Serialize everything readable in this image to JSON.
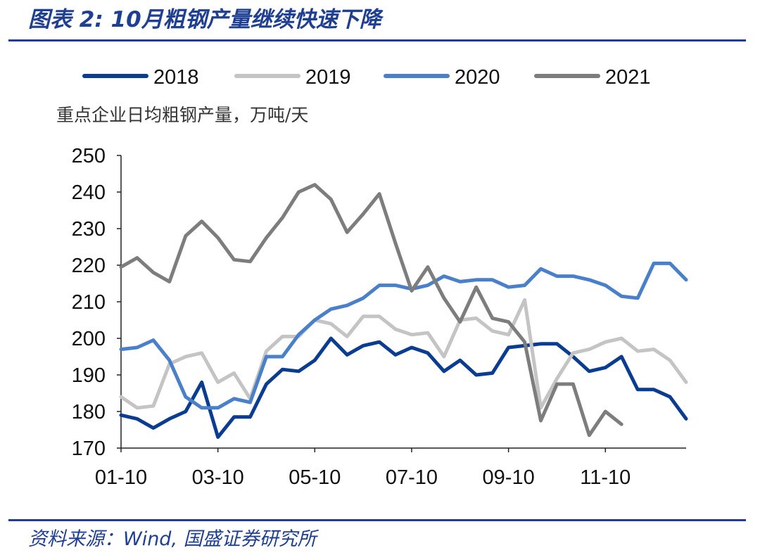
{
  "figure": {
    "title": "图表 2: 10月粗钢产量继续快速下降",
    "source": "资料来源：Wind, 国盛证券研究所"
  },
  "chart_data": {
    "type": "line",
    "ylabel": "重点企业日均粗钢产量，万吨/天",
    "ylim": [
      170,
      250
    ],
    "yticks": [
      170,
      180,
      190,
      200,
      210,
      220,
      230,
      240,
      250
    ],
    "xticks": [
      "01-10",
      "03-10",
      "05-10",
      "07-10",
      "09-10",
      "11-10"
    ],
    "xtick_index": [
      0,
      6,
      12,
      18,
      24,
      30
    ],
    "n_periods": 36,
    "legend_position": "top",
    "grid": false,
    "series": [
      {
        "name": "2018",
        "color": "#0a3d91",
        "values": [
          179,
          178,
          175.5,
          178,
          180,
          188,
          173,
          178.5,
          178.5,
          187.5,
          191.5,
          191,
          194,
          200,
          195.5,
          198,
          199,
          195.5,
          197.5,
          196,
          191,
          194,
          190,
          190.5,
          197.5,
          198,
          198.5,
          198.5,
          195,
          191,
          192,
          195,
          186,
          186,
          184,
          178
        ]
      },
      {
        "name": "2019",
        "color": "#c4c4c4",
        "values": [
          184,
          181,
          181.5,
          193,
          195,
          196,
          188,
          190.5,
          183.5,
          196.5,
          200.5,
          200.5,
          205,
          204,
          200.5,
          206,
          206,
          202.5,
          201,
          201.5,
          195,
          205,
          205.5,
          202,
          201,
          210.5,
          181,
          189,
          196,
          197,
          199,
          200,
          196.5,
          197,
          194,
          188
        ]
      },
      {
        "name": "2020",
        "color": "#4a7fc9",
        "values": [
          197,
          197.5,
          199.5,
          194,
          184,
          181,
          181,
          183.5,
          182.5,
          195,
          195,
          201,
          205,
          208,
          209,
          211,
          214.5,
          214.5,
          213.5,
          214.5,
          217,
          215.5,
          216,
          216,
          214,
          214.5,
          219,
          217,
          217,
          216,
          214.5,
          211.5,
          211,
          220.5,
          220.5,
          216
        ]
      },
      {
        "name": "2021",
        "color": "#7d7d7d",
        "values": [
          219.5,
          222,
          218,
          215.5,
          228,
          232,
          227.5,
          221.5,
          221,
          227.5,
          233,
          240,
          242,
          238,
          229,
          234,
          239.5,
          226,
          213,
          219.5,
          211,
          204.5,
          214,
          205.5,
          204.5,
          199,
          177.5,
          187.5,
          187.5,
          173.5,
          180,
          176.5
        ]
      }
    ]
  }
}
